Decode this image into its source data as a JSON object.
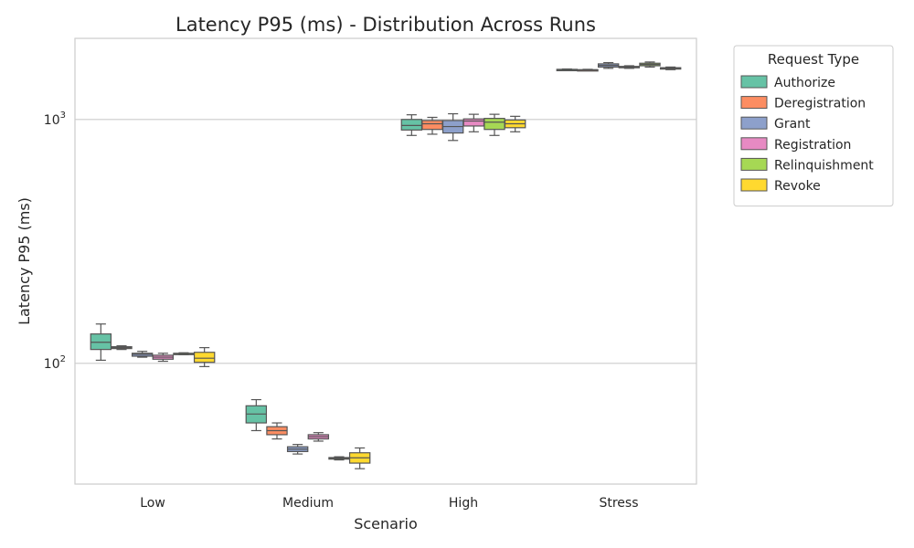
{
  "chart_data": {
    "type": "box",
    "title": "Latency P95 (ms) - Distribution Across Runs",
    "xlabel": "Scenario",
    "ylabel": "Latency P95 (ms)",
    "yscale": "log",
    "ylim": [
      32,
      2150
    ],
    "yticks": [
      {
        "value": 100,
        "base": "10",
        "exp": "2"
      },
      {
        "value": 1000,
        "base": "10",
        "exp": "3"
      }
    ],
    "grid": "horizontal",
    "categories": [
      "Low",
      "Medium",
      "High",
      "Stress"
    ],
    "legend": {
      "title": "Request Type",
      "placement": "outside-top-right"
    },
    "series": [
      {
        "name": "Authorize",
        "color": "#66c2a5",
        "boxes": [
          {
            "min": 103,
            "q1": 114,
            "median": 122,
            "q3": 132,
            "max": 145
          },
          {
            "min": 53,
            "q1": 57,
            "median": 62,
            "q3": 67,
            "max": 71
          },
          {
            "min": 860,
            "q1": 905,
            "median": 945,
            "q3": 1000,
            "max": 1045
          },
          {
            "min": 1590,
            "q1": 1595,
            "median": 1600,
            "q3": 1605,
            "max": 1610
          }
        ]
      },
      {
        "name": "Deregistration",
        "color": "#fc8d62",
        "boxes": [
          {
            "min": 114,
            "q1": 115,
            "median": 116,
            "q3": 117,
            "max": 118
          },
          {
            "min": 49,
            "q1": 51,
            "median": 53,
            "q3": 55,
            "max": 57
          },
          {
            "min": 870,
            "q1": 910,
            "median": 960,
            "q3": 990,
            "max": 1020
          },
          {
            "min": 1585,
            "q1": 1590,
            "median": 1595,
            "q3": 1600,
            "max": 1605
          }
        ]
      },
      {
        "name": "Grant",
        "color": "#8da0cb",
        "boxes": [
          {
            "min": 106,
            "q1": 107,
            "median": 109,
            "q3": 110,
            "max": 112
          },
          {
            "min": 42.5,
            "q1": 43.5,
            "median": 44.5,
            "q3": 45.5,
            "max": 46.5
          },
          {
            "min": 820,
            "q1": 880,
            "median": 935,
            "q3": 990,
            "max": 1055
          },
          {
            "min": 1620,
            "q1": 1640,
            "median": 1665,
            "q3": 1690,
            "max": 1710
          }
        ]
      },
      {
        "name": "Registration",
        "color": "#e78ac3",
        "boxes": [
          {
            "min": 102,
            "q1": 104,
            "median": 106,
            "q3": 108,
            "max": 110
          },
          {
            "min": 48,
            "q1": 49,
            "median": 50,
            "q3": 51,
            "max": 52
          },
          {
            "min": 890,
            "q1": 940,
            "median": 985,
            "q3": 1005,
            "max": 1050
          },
          {
            "min": 1620,
            "q1": 1630,
            "median": 1640,
            "q3": 1650,
            "max": 1660
          }
        ]
      },
      {
        "name": "Relinquishment",
        "color": "#a6d854",
        "boxes": [
          {
            "min": 108.5,
            "q1": 109,
            "median": 109.5,
            "q3": 110,
            "max": 110.5
          },
          {
            "min": 40.2,
            "q1": 40.5,
            "median": 40.8,
            "q3": 41.1,
            "max": 41.4
          },
          {
            "min": 860,
            "q1": 910,
            "median": 975,
            "q3": 1010,
            "max": 1050
          },
          {
            "min": 1640,
            "q1": 1660,
            "median": 1680,
            "q3": 1700,
            "max": 1720
          }
        ]
      },
      {
        "name": "Revoke",
        "color": "#ffd92f",
        "boxes": [
          {
            "min": 97,
            "q1": 101,
            "median": 105,
            "q3": 111,
            "max": 116
          },
          {
            "min": 37,
            "q1": 39,
            "median": 41,
            "q3": 43,
            "max": 45
          },
          {
            "min": 890,
            "q1": 925,
            "median": 960,
            "q3": 995,
            "max": 1030
          },
          {
            "min": 1600,
            "q1": 1610,
            "median": 1620,
            "q3": 1630,
            "max": 1640
          }
        ]
      }
    ]
  }
}
